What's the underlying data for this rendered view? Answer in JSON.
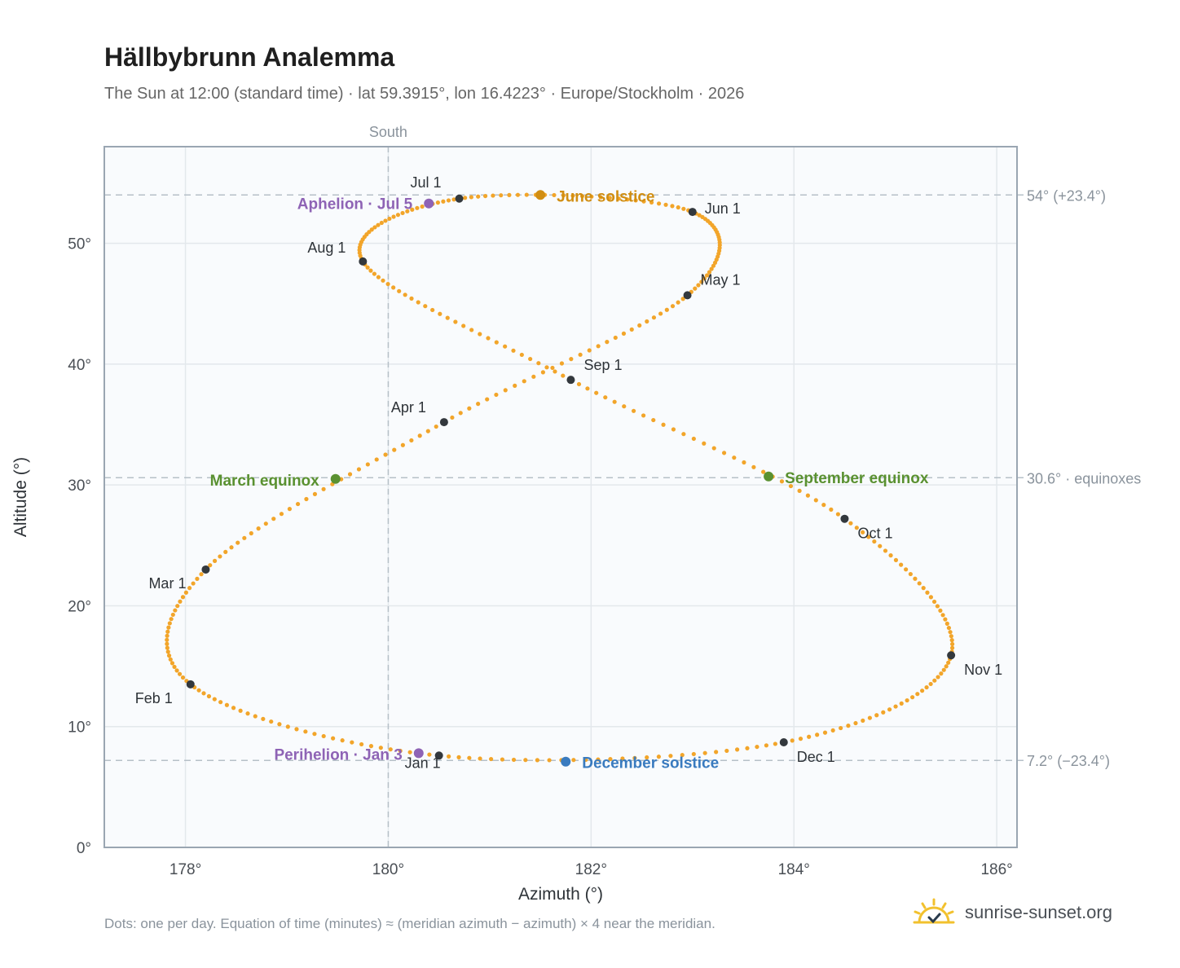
{
  "header": {
    "title": "Hällbybrunn Analemma",
    "subtitle": "The Sun at 12:00 (standard time) · lat 59.3915°, lon 16.4223° · Europe/Stockholm · 2026"
  },
  "footer": {
    "note": "Dots: one per day. Equation of time (minutes) ≈ (meridian azimuth − azimuth) × 4 near the meridian.",
    "brand": "sunrise-sunset.org"
  },
  "icons": {
    "brand_icon": "sun-check-icon"
  },
  "colors": {
    "curve": "#f2a52a",
    "month_marker": "#33383d",
    "june_solstice": "#d18e12",
    "december_solstice": "#3a7bbf",
    "equinox": "#5a9131",
    "apsis": "#8e63b5",
    "grid": "#e3e8ec",
    "reference_line": "#b6c0c8",
    "plot_border": "#9aa6b2",
    "plot_background": "#f9fbfd"
  },
  "chart_data": {
    "type": "scatter",
    "xlabel": "Azimuth (°)",
    "ylabel": "Altitude (°)",
    "xlim": [
      177.2,
      186.2
    ],
    "ylim": [
      0,
      58
    ],
    "xticks": [
      178,
      180,
      182,
      184,
      186
    ],
    "xtick_labels": [
      "178°",
      "180°",
      "182°",
      "184°",
      "186°"
    ],
    "yticks": [
      0,
      10,
      20,
      30,
      40,
      50
    ],
    "ytick_labels": [
      "0°",
      "10°",
      "20°",
      "30°",
      "40°",
      "50°"
    ],
    "grid": true,
    "meridian": {
      "azimuth": 180,
      "label": "South"
    },
    "reference_lines": [
      {
        "altitude": 54.0,
        "label": "54° (+23.4°)"
      },
      {
        "altitude": 30.6,
        "label": "30.6° · equinoxes"
      },
      {
        "altitude": 7.2,
        "label": "7.2° (−23.4°)"
      }
    ],
    "daily_points_per_year": 365,
    "month_markers": [
      {
        "label": "Jan 1",
        "azimuth": 180.5,
        "altitude": 7.6
      },
      {
        "label": "Feb 1",
        "azimuth": 178.05,
        "altitude": 13.5
      },
      {
        "label": "Mar 1",
        "azimuth": 178.2,
        "altitude": 23.0
      },
      {
        "label": "Apr 1",
        "azimuth": 180.55,
        "altitude": 35.2
      },
      {
        "label": "May 1",
        "azimuth": 182.95,
        "altitude": 45.7
      },
      {
        "label": "Jun 1",
        "azimuth": 183.0,
        "altitude": 52.6
      },
      {
        "label": "Jul 1",
        "azimuth": 180.7,
        "altitude": 53.7
      },
      {
        "label": "Aug 1",
        "azimuth": 179.75,
        "altitude": 48.5
      },
      {
        "label": "Sep 1",
        "azimuth": 181.8,
        "altitude": 38.7
      },
      {
        "label": "Oct 1",
        "azimuth": 184.5,
        "altitude": 27.2
      },
      {
        "label": "Nov 1",
        "azimuth": 185.55,
        "altitude": 15.9
      },
      {
        "label": "Dec 1",
        "azimuth": 183.9,
        "altitude": 8.7
      }
    ],
    "events": [
      {
        "label": "June solstice",
        "azimuth": 181.5,
        "altitude": 54.0,
        "color_key": "june_solstice"
      },
      {
        "label": "December solstice",
        "azimuth": 181.75,
        "altitude": 7.1,
        "color_key": "december_solstice"
      },
      {
        "label": "March equinox",
        "azimuth": 179.48,
        "altitude": 30.5,
        "color_key": "equinox"
      },
      {
        "label": "September equinox",
        "azimuth": 183.75,
        "altitude": 30.7,
        "color_key": "equinox"
      },
      {
        "label": "Aphelion · Jul 5",
        "azimuth": 180.4,
        "altitude": 53.3,
        "color_key": "apsis"
      },
      {
        "label": "Perihelion · Jan 3",
        "azimuth": 180.3,
        "altitude": 7.8,
        "color_key": "apsis"
      }
    ]
  }
}
